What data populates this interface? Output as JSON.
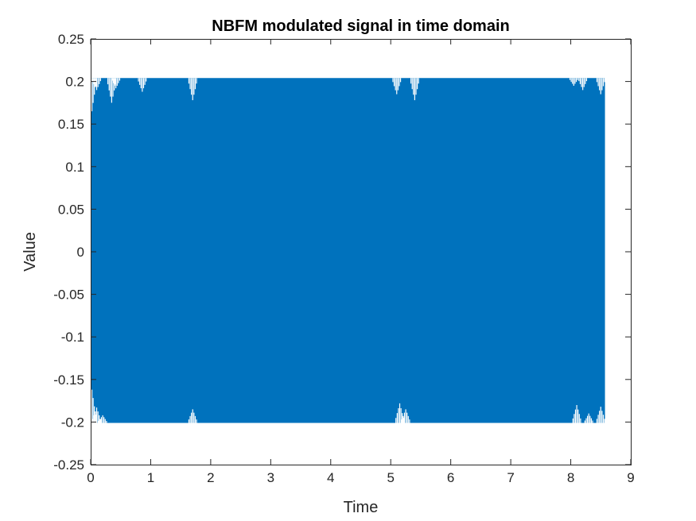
{
  "chart_data": {
    "type": "line",
    "title": "NBFM modulated signal in time domain",
    "xlabel": "Time",
    "ylabel": "Value",
    "xlim": [
      0,
      9
    ],
    "ylim": [
      -0.25,
      0.25
    ],
    "xticks": [
      "0",
      "1",
      "2",
      "3",
      "4",
      "5",
      "6",
      "7",
      "8",
      "9"
    ],
    "yticks": [
      "0.25",
      "0.2",
      "0.15",
      "0.1",
      "0.05",
      "0",
      "-0.05",
      "-0.1",
      "-0.15",
      "-0.2",
      "-0.25"
    ],
    "grid": false,
    "legend": "none",
    "series": [
      {
        "color": "#0072BD",
        "x_range": [
          0,
          8.57
        ],
        "envelope_max": 0.204,
        "envelope_min": -0.201,
        "upper_dips": [
          {
            "t": 0.02,
            "y": 0.165
          },
          {
            "t": 0.1,
            "y": 0.19
          },
          {
            "t": 0.35,
            "y": 0.175
          },
          {
            "t": 0.42,
            "y": 0.192
          },
          {
            "t": 0.86,
            "y": 0.188
          },
          {
            "t": 1.7,
            "y": 0.178
          },
          {
            "t": 5.1,
            "y": 0.185
          },
          {
            "t": 5.4,
            "y": 0.178
          },
          {
            "t": 8.05,
            "y": 0.195
          },
          {
            "t": 8.2,
            "y": 0.19
          },
          {
            "t": 8.5,
            "y": 0.185
          }
        ],
        "lower_dips": [
          {
            "t": 0.02,
            "y": -0.162
          },
          {
            "t": 0.1,
            "y": -0.183
          },
          {
            "t": 0.2,
            "y": -0.192
          },
          {
            "t": 1.7,
            "y": -0.185
          },
          {
            "t": 5.15,
            "y": -0.178
          },
          {
            "t": 5.25,
            "y": -0.185
          },
          {
            "t": 8.1,
            "y": -0.18
          },
          {
            "t": 8.3,
            "y": -0.19
          },
          {
            "t": 8.5,
            "y": -0.182
          }
        ]
      }
    ]
  }
}
